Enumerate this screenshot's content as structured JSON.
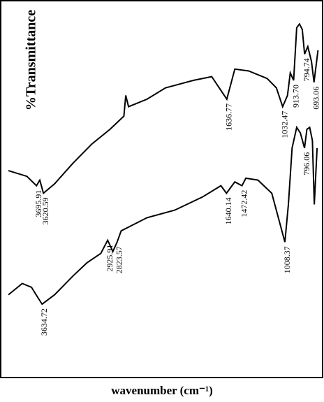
{
  "chart_data": {
    "type": "line",
    "y_label": "%Transmittance",
    "x_label": "wavenumber (cm⁻¹)",
    "xlim": [
      4000,
      600
    ],
    "ylim": [
      0,
      100
    ],
    "series": [
      {
        "color": "#000000",
        "x": [
          4000,
          3800,
          3695.91,
          3660,
          3620.59,
          3500,
          3300,
          3100,
          2900,
          2750,
          2730,
          2700,
          2500,
          2300,
          2000,
          1800,
          1636.77,
          1550,
          1400,
          1200,
          1100,
          1032.47,
          980,
          950,
          913.7,
          880,
          850,
          820,
          794.74,
          760,
          720,
          693.06,
          650
        ],
        "values": [
          55,
          53.5,
          51,
          52.5,
          49,
          51.5,
          57,
          62,
          66,
          69.5,
          75,
          72,
          74,
          77,
          79,
          80,
          74,
          82,
          81.5,
          79.5,
          77,
          72,
          75,
          81,
          79,
          93,
          94,
          92.5,
          86,
          88,
          84,
          78.5,
          87
        ],
        "peaks": [
          "3695.91",
          "3620.59",
          "1636.77",
          "1032.47",
          "913.70",
          "794.74",
          "693.06"
        ],
        "peak_x": [
          3695.91,
          3620.59,
          1636.77,
          1032.47,
          913.7,
          794.74,
          693.06
        ]
      },
      {
        "color": "#000000",
        "x": [
          4000,
          3850,
          3750,
          3700,
          3634.72,
          3500,
          3300,
          3150,
          3000,
          2925.91,
          2870,
          2823.57,
          2780,
          2500,
          2200,
          1900,
          1700,
          1640.14,
          1550,
          1472.42,
          1430,
          1300,
          1150,
          1008.37,
          970,
          930,
          880,
          840,
          796.06,
          770,
          740,
          710,
          690,
          660
        ],
        "values": [
          22,
          25,
          24,
          22,
          19.5,
          22,
          27,
          30.5,
          33,
          36.5,
          33.5,
          36,
          39,
          42.5,
          44.5,
          48,
          51,
          49,
          52,
          51,
          53,
          52.5,
          49,
          36,
          46,
          61,
          66.5,
          65,
          61,
          66,
          66.5,
          63,
          46,
          61
        ],
        "peaks": [
          "3634.72",
          "2925.91",
          "2823.57",
          "1640.14",
          "1472.42",
          "1008.37",
          "796.06"
        ],
        "peak_x": [
          3634.72,
          2925.91,
          2823.57,
          1640.14,
          1472.42,
          1008.37,
          796.06
        ]
      }
    ]
  }
}
